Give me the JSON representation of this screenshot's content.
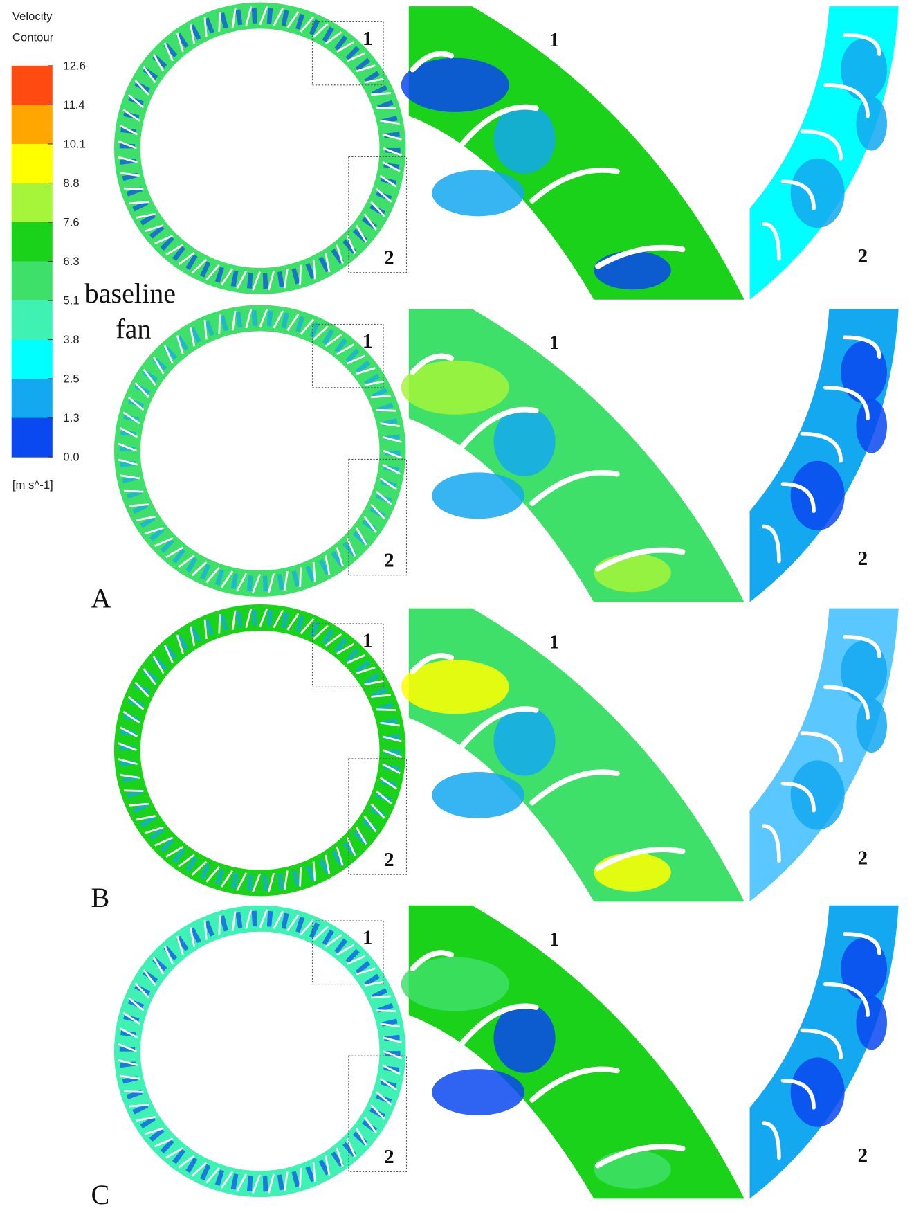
{
  "legend": {
    "title": [
      "Velocity",
      "Contour"
    ],
    "ticks": [
      "12.6",
      "11.4",
      "10.1",
      "8.8",
      "7.6",
      "6.3",
      "5.1",
      "3.8",
      "2.5",
      "1.3",
      "0.0"
    ],
    "colors": [
      "#ff4a12",
      "#ffa600",
      "#ffff00",
      "#a6f53a",
      "#19d219",
      "#3fe06a",
      "#3ff2b4",
      "#00ffff",
      "#14a8f0",
      "#0a48f0"
    ],
    "unit": "[m s^-1]"
  },
  "rows": [
    {
      "label": [
        "baseline",
        "fan"
      ],
      "zones": [
        "1",
        "2"
      ]
    },
    {
      "label": [
        "A"
      ],
      "zones": [
        "1",
        "2"
      ]
    },
    {
      "label": [
        "B"
      ],
      "zones": [
        "1",
        "2"
      ]
    },
    {
      "label": [
        "C"
      ],
      "zones": [
        "1",
        "2"
      ]
    }
  ]
}
